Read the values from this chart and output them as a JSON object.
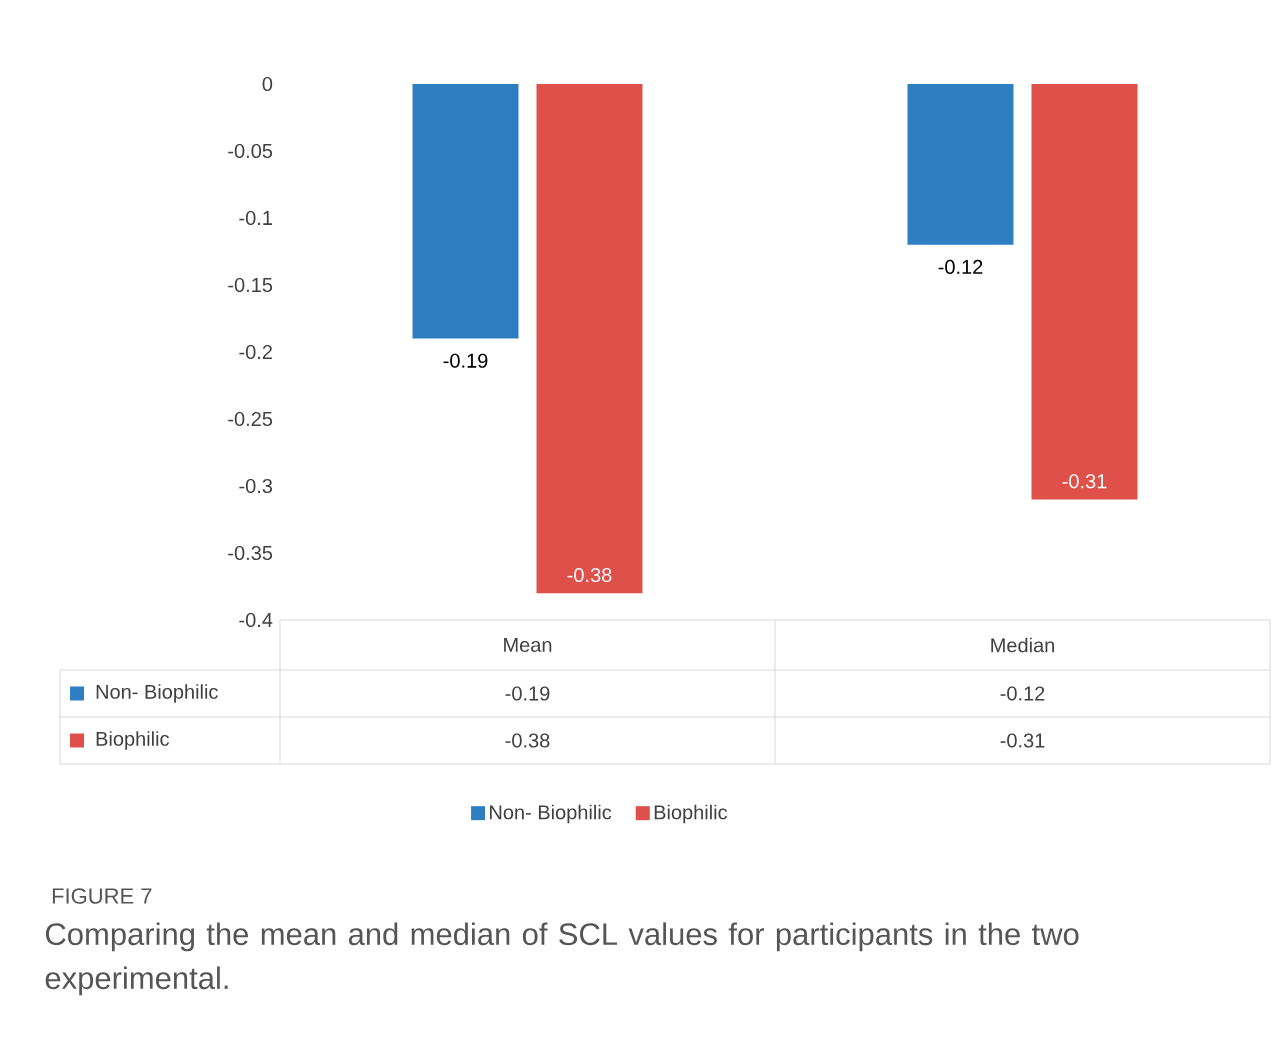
{
  "chart_data": {
    "type": "bar",
    "categories": [
      "Mean",
      "Median"
    ],
    "series": [
      {
        "name": "Non- Biophilic",
        "color": "#2e7fc2",
        "values": [
          -0.19,
          -0.12
        ],
        "value_labels": [
          "-0.19",
          "-0.12"
        ]
      },
      {
        "name": "Biophilic",
        "color": "#e0504a",
        "values": [
          -0.38,
          -0.31
        ],
        "value_labels": [
          "-0.38",
          "-0.31"
        ]
      }
    ],
    "ylim": [
      -0.4,
      0
    ],
    "yticks": [
      -0.4,
      -0.35,
      -0.3,
      -0.25,
      -0.2,
      -0.15,
      -0.1,
      -0.05,
      0
    ],
    "data_labels": true,
    "legend": "bottom",
    "annotations": [
      "FIGURE 7",
      "Comparing the mean and median of SCL values for participants in the two experimental."
    ]
  }
}
